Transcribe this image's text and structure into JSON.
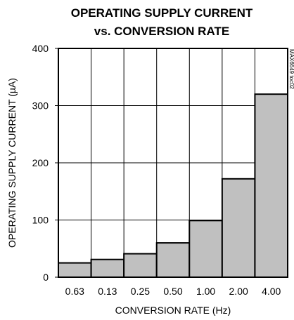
{
  "chart_data": {
    "type": "bar",
    "title_line1": "OPERATING SUPPLY CURRENT",
    "title_line2": "vs. CONVERSION RATE",
    "xlabel": "CONVERSION RATE (Hz)",
    "ylabel": "OPERATING SUPPLY CURRENT (µA)",
    "categories": [
      "0.63",
      "0.13",
      "0.25",
      "0.50",
      "1.00",
      "2.00",
      "4.00"
    ],
    "values": [
      25,
      31,
      41,
      60,
      99,
      172,
      320
    ],
    "ylim": [
      0,
      400
    ],
    "yticks": [
      0,
      100,
      200,
      300,
      400
    ],
    "grid": true,
    "bar_color": "#c0c0c0",
    "side_note": "MAX6649 toc02"
  }
}
